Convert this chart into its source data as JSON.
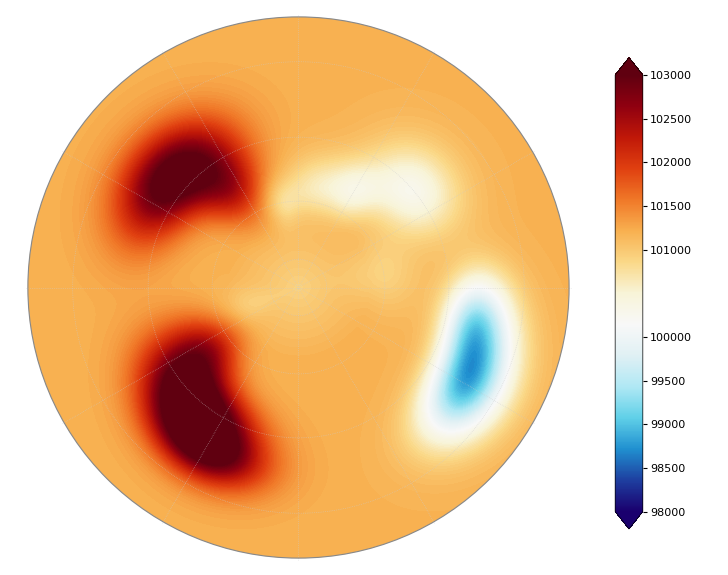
{
  "vmin": 98000,
  "vmax": 103000,
  "colorbar_ticks": [
    98000,
    98500,
    99000,
    99500,
    100000,
    101000,
    101500,
    102000,
    102500,
    103000
  ],
  "colors_lo_to_hi": [
    "#1a006e",
    "#1e3fa0",
    "#2090d0",
    "#60d0e8",
    "#b0e8f4",
    "#e0f0f4",
    "#f8f8f8",
    "#f8f4d8",
    "#fad888",
    "#f8b050",
    "#f07828",
    "#e04010",
    "#c01808",
    "#900010",
    "#600010"
  ],
  "background_color": "#ffffff",
  "globe_bg": "#f0f4f8",
  "coastline_color": "#222222",
  "grid_color": "#cccccc",
  "grid_alpha": 0.7
}
